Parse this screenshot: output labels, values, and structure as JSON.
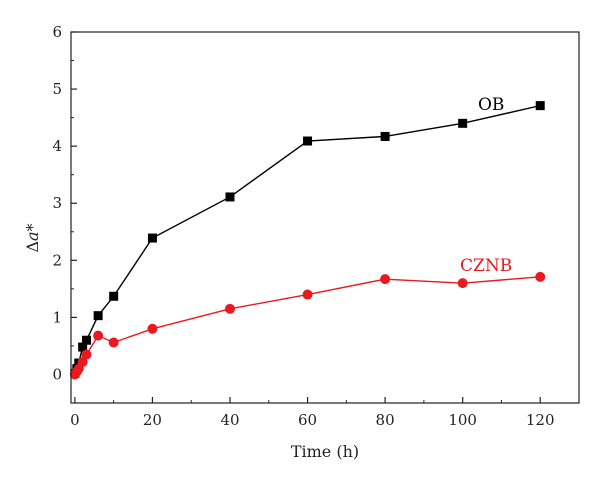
{
  "chart_data": {
    "type": "line",
    "xlabel": "Time (h)",
    "ylabel": "Δa*",
    "xlim": [
      -1,
      130
    ],
    "ylim": [
      -0.5,
      6
    ],
    "xticks": [
      0,
      20,
      40,
      60,
      80,
      100,
      120
    ],
    "yticks": [
      0,
      1,
      2,
      3,
      4,
      5,
      6
    ],
    "grid": false,
    "series": [
      {
        "name": "OB",
        "color": "#000000",
        "marker": "square",
        "x": [
          0,
          0.5,
          1,
          2,
          3,
          6,
          10,
          20,
          40,
          60,
          80,
          100,
          120
        ],
        "y": [
          0.02,
          0.1,
          0.2,
          0.48,
          0.6,
          1.03,
          1.37,
          2.39,
          3.11,
          4.09,
          4.17,
          4.4,
          4.71
        ]
      },
      {
        "name": "CZNB",
        "color": "#e8191f",
        "marker": "circle",
        "x": [
          0,
          0.5,
          1,
          2,
          3,
          6,
          10,
          20,
          40,
          60,
          80,
          100,
          120
        ],
        "y": [
          0.0,
          0.05,
          0.1,
          0.22,
          0.35,
          0.68,
          0.56,
          0.8,
          1.15,
          1.4,
          1.67,
          1.6,
          1.71
        ]
      }
    ]
  }
}
